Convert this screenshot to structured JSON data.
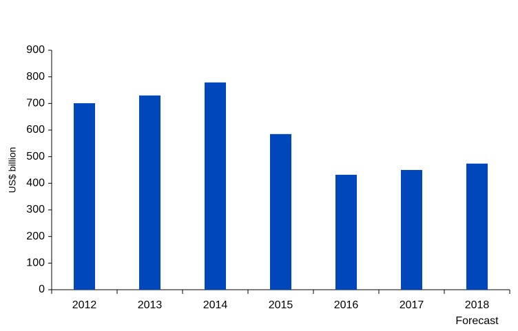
{
  "chart_data": {
    "type": "bar",
    "y_label": "US$ billion",
    "categories": [
      "2012",
      "2013",
      "2014",
      "2015",
      "2016",
      "2017",
      "2018"
    ],
    "values": [
      701,
      730,
      779,
      585,
      432,
      450,
      474
    ],
    "color": "#0047bb",
    "annotation": "Forecast",
    "ylim": [
      0,
      900
    ],
    "yticks": [
      0,
      100,
      200,
      300,
      400,
      500,
      600,
      700,
      800,
      900
    ],
    "grid": false
  }
}
